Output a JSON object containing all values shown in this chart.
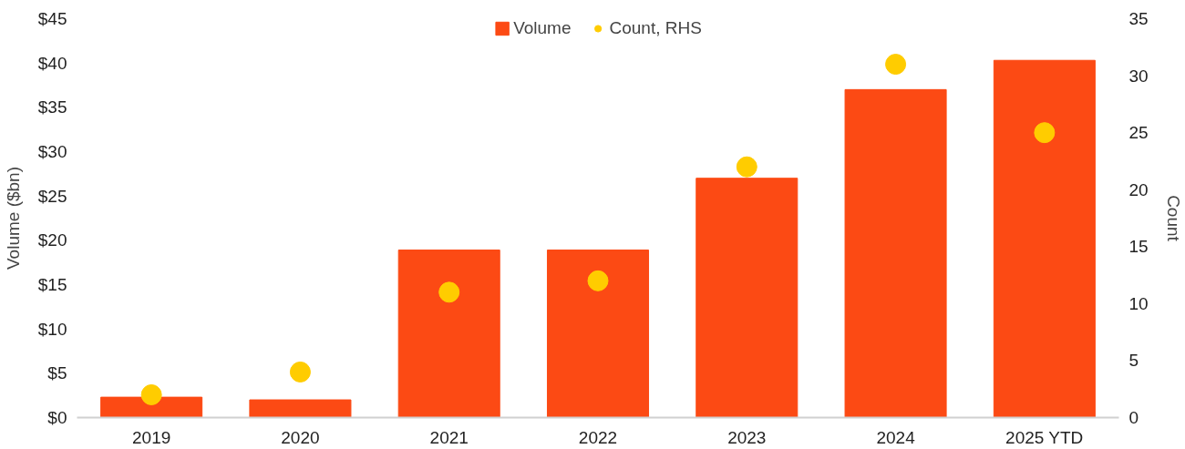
{
  "chart_data": {
    "type": "bar",
    "categories": [
      "2019",
      "2020",
      "2021",
      "2022",
      "2023",
      "2024",
      "2025 YTD"
    ],
    "ylabel": "Volume ($bn)",
    "y2label": "Count",
    "series": [
      {
        "name": "Volume",
        "color": "#fc4a14",
        "values": [
          2.3,
          2.0,
          18.9,
          18.9,
          27.0,
          37.0,
          40.3
        ]
      },
      {
        "name": "Count, RHS",
        "type": "scatter",
        "axis": "y2",
        "marker": "circle",
        "color": "#ffcc00",
        "values": [
          2,
          4,
          11,
          12,
          22,
          31,
          25
        ]
      }
    ],
    "ylim": [
      0,
      45
    ],
    "yticks": [
      {
        "value": 0,
        "label": "$0"
      },
      {
        "value": 5,
        "label": "$5"
      },
      {
        "value": 10,
        "label": "$10"
      },
      {
        "value": 15,
        "label": "$15"
      },
      {
        "value": 20,
        "label": "$20"
      },
      {
        "value": 25,
        "label": "$25"
      },
      {
        "value": 30,
        "label": "$30"
      },
      {
        "value": 35,
        "label": "$35"
      },
      {
        "value": 40,
        "label": "$40"
      },
      {
        "value": 45,
        "label": "$45"
      }
    ],
    "y2lim": [
      0,
      35
    ],
    "y2ticks": [
      0,
      5,
      10,
      15,
      20,
      25,
      30,
      35
    ],
    "grid": false,
    "legend": "top"
  }
}
